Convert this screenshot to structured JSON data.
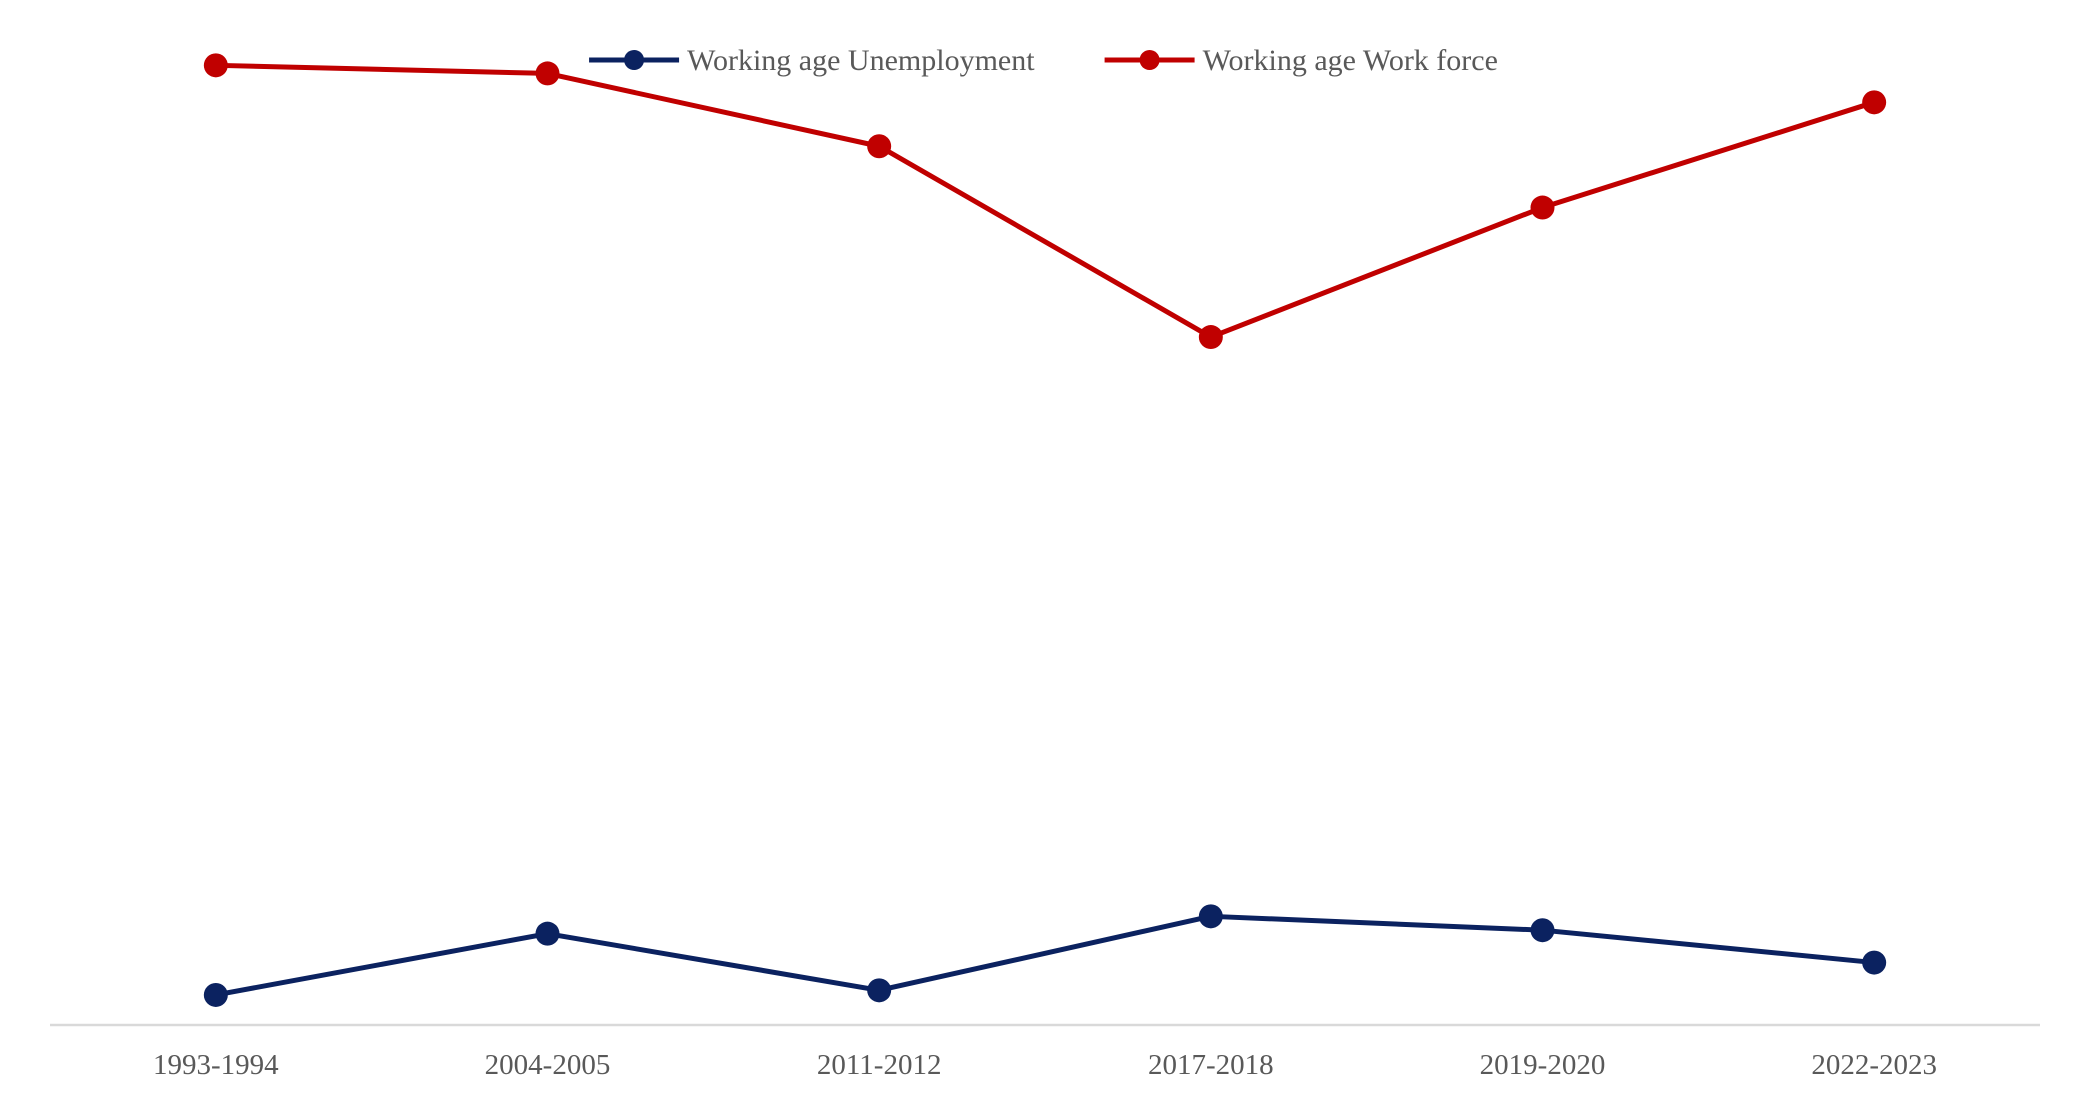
{
  "chart_data": {
    "type": "line",
    "title": "",
    "xlabel": "",
    "ylabel": "",
    "categories": [
      "1993-1994",
      "2004-2005",
      "2011-2012",
      "2017-2018",
      "2019-2020",
      "2022-2023"
    ],
    "ylim": [
      0,
      80
    ],
    "grid": false,
    "y_axis_visible": false,
    "legend_position": "top-center",
    "series": [
      {
        "name": "Working age Unemployment",
        "color": "#0b2260",
        "values": [
          2.6,
          7.9,
          3.0,
          9.4,
          8.2,
          5.4
        ]
      },
      {
        "name": "Working age Work force",
        "color": "#c00000",
        "values": [
          83.0,
          82.3,
          76.0,
          59.5,
          70.7,
          79.8
        ]
      }
    ]
  }
}
